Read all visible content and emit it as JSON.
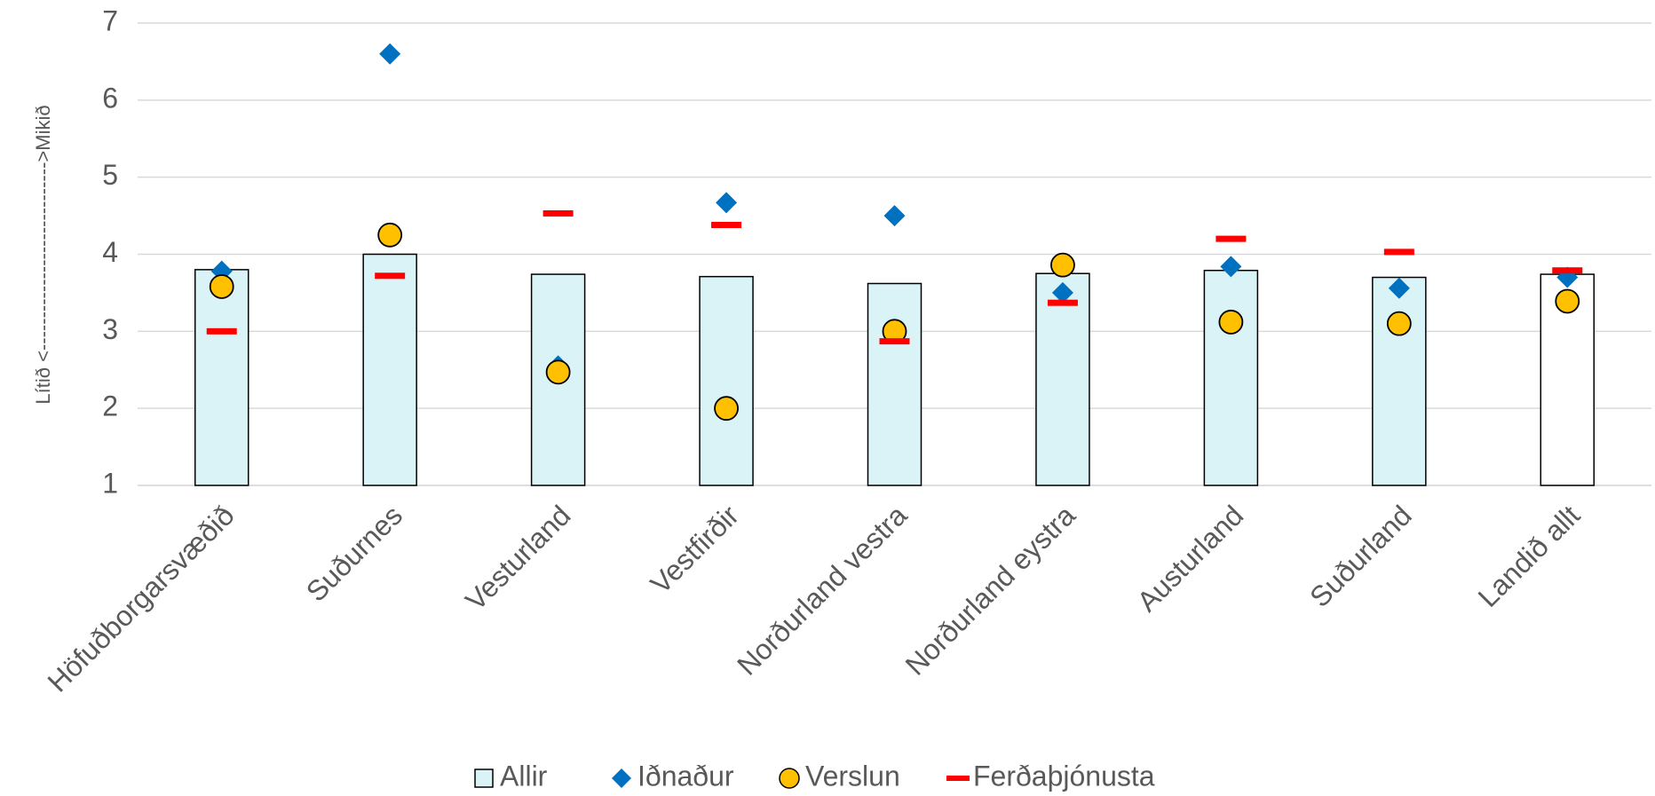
{
  "chart_data": {
    "type": "bar_markers",
    "ylabel": "Lítið <----------------------------->Mikið",
    "categories": [
      "Höfuðborgarsvæðið",
      "Suðurnes",
      "Vesturland",
      "Vestfirðir",
      "Norðurland vestra",
      "Norðurland eystra",
      "Austurland",
      "Suðurland",
      "Landið allt"
    ],
    "series": [
      {
        "name": "Allir",
        "kind": "bar",
        "color": "#daf3f7",
        "bar_colors": [
          "#daf3f7",
          "#daf3f7",
          "#daf3f7",
          "#daf3f7",
          "#daf3f7",
          "#daf3f7",
          "#daf3f7",
          "#daf3f7",
          "#ffffff"
        ],
        "values": [
          3.8,
          4.0,
          3.74,
          3.71,
          3.62,
          3.75,
          3.79,
          3.7,
          3.74
        ]
      },
      {
        "name": "Iðnaður",
        "kind": "diamond",
        "color": "#0070c0",
        "values": [
          3.78,
          6.6,
          2.55,
          4.67,
          4.5,
          3.5,
          3.84,
          3.56,
          3.7
        ]
      },
      {
        "name": "Verslun",
        "kind": "circle",
        "color": "#ffc000",
        "values": [
          3.58,
          4.25,
          2.47,
          2.0,
          3.0,
          3.86,
          3.12,
          3.1,
          3.39
        ]
      },
      {
        "name": "Ferðaþjónusta",
        "kind": "dash",
        "color": "#ff0000",
        "values": [
          3.0,
          3.72,
          4.53,
          4.38,
          2.87,
          3.37,
          4.2,
          4.03,
          3.79
        ]
      }
    ],
    "ylim": [
      1,
      7
    ],
    "yticks": [
      1,
      2,
      3,
      4,
      5,
      6,
      7
    ],
    "grid": true,
    "legend": "bottom"
  }
}
